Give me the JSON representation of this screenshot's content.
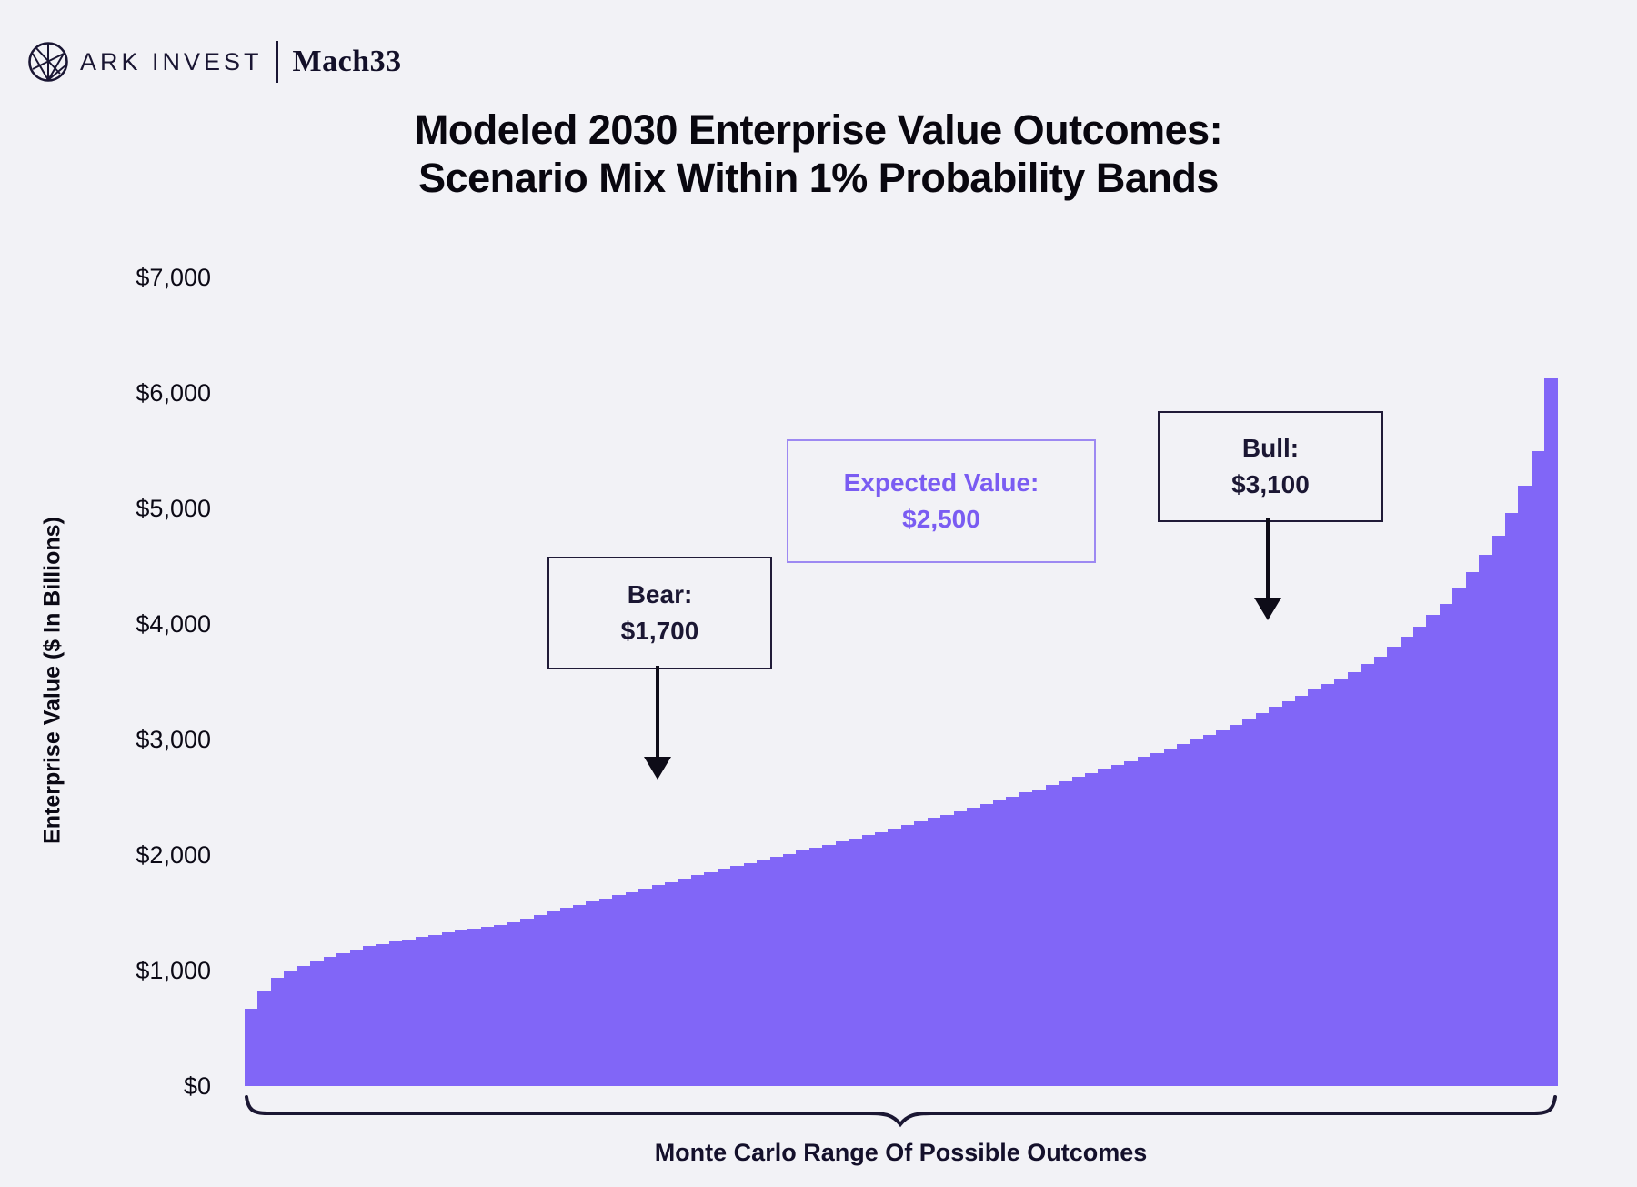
{
  "header": {
    "brand_primary": "ARK INVEST",
    "brand_secondary": "Mach33",
    "logo": "ark-globe-icon"
  },
  "title": {
    "line1": "Modeled 2030 Enterprise Value Outcomes:",
    "line2": "Scenario Mix Within 1% Probability Bands"
  },
  "chart_data": {
    "type": "bar",
    "title": "Modeled 2030 Enterprise Value Outcomes: Scenario Mix Within 1% Probability Bands",
    "ylabel": "Enterprise Value ($ In Billions)",
    "xlabel": "Monte Carlo Range Of Possible Outcomes",
    "ylim": [
      0,
      7000
    ],
    "y_ticks": [
      "$0",
      "$1,000",
      "$2,000",
      "$3,000",
      "$4,000",
      "$5,000",
      "$6,000",
      "$7,000"
    ],
    "grid": false,
    "legend": "none",
    "n_bands": 100,
    "x_description": "100 one-percent probability bands, outcomes sorted ascending",
    "bar_color": "#8166F7",
    "values": [
      670,
      820,
      935,
      990,
      1040,
      1085,
      1120,
      1150,
      1180,
      1210,
      1230,
      1250,
      1270,
      1290,
      1310,
      1330,
      1345,
      1360,
      1375,
      1390,
      1420,
      1450,
      1480,
      1510,
      1540,
      1565,
      1595,
      1625,
      1650,
      1680,
      1710,
      1740,
      1765,
      1795,
      1825,
      1850,
      1880,
      1905,
      1930,
      1960,
      1985,
      2010,
      2040,
      2065,
      2090,
      2120,
      2145,
      2175,
      2200,
      2230,
      2260,
      2290,
      2320,
      2350,
      2380,
      2410,
      2440,
      2475,
      2505,
      2540,
      2570,
      2605,
      2640,
      2675,
      2710,
      2745,
      2780,
      2815,
      2850,
      2880,
      2920,
      2960,
      3000,
      3040,
      3080,
      3130,
      3180,
      3230,
      3280,
      3330,
      3380,
      3430,
      3480,
      3530,
      3580,
      3650,
      3720,
      3800,
      3890,
      3980,
      4080,
      4170,
      4310,
      4450,
      4600,
      4760,
      4960,
      5200,
      5500,
      6130
    ],
    "annotations": [
      {
        "id": "bear",
        "label": "Bear:",
        "value": "$1,700",
        "style": "dark"
      },
      {
        "id": "expected",
        "label": "Expected Value:",
        "value": "$2,500",
        "style": "purple"
      },
      {
        "id": "bull",
        "label": "Bull:",
        "value": "$3,100",
        "style": "dark"
      }
    ]
  },
  "colors": {
    "background": "#F2F2F6",
    "bar": "#8166F7",
    "ink": "#15112B",
    "accent_purple": "#7A5CF2",
    "accent_purple_border": "#9D89F2"
  }
}
